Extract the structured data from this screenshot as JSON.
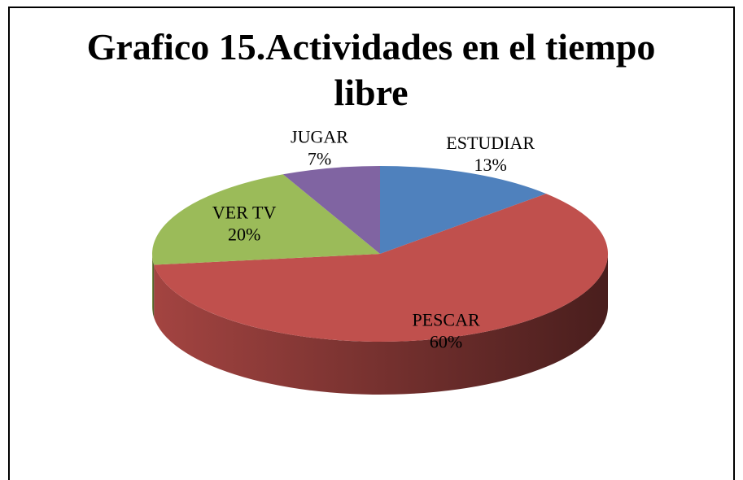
{
  "chart_data": {
    "type": "pie",
    "title": "Grafico 15.Actividades en el tiempo libre",
    "categories": [
      "ESTUDIAR",
      "PESCAR",
      "VER TV",
      "JUGAR"
    ],
    "values": [
      13,
      60,
      20,
      7
    ],
    "value_labels": [
      "13%",
      "60%",
      "20%",
      "7%"
    ],
    "colors": [
      "#4f81bd",
      "#c0504d",
      "#9bbb59",
      "#8064a2"
    ]
  }
}
